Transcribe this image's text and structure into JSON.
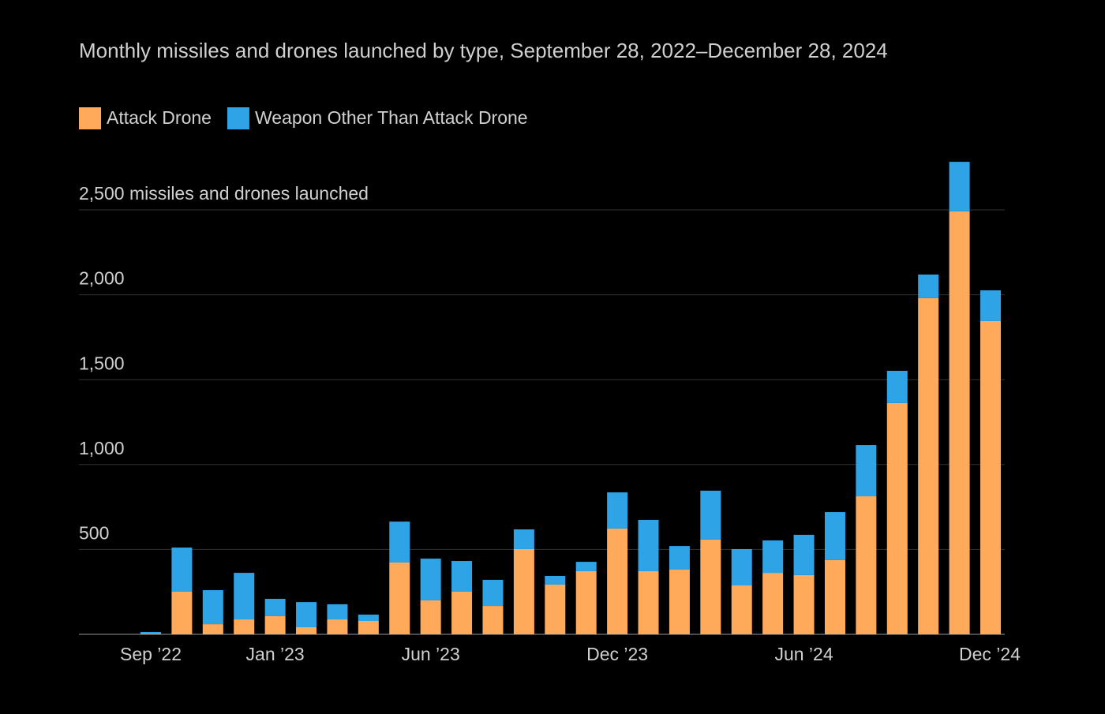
{
  "chart_data": {
    "type": "stacked_bar",
    "title": "Monthly missiles and drones launched by type, September 28, 2022–December 28, 2024",
    "categories": [
      "Sep ’22",
      null,
      null,
      null,
      "Jan ’23",
      null,
      null,
      null,
      null,
      "Jun ’23",
      null,
      null,
      null,
      null,
      null,
      "Dec ’23",
      null,
      null,
      null,
      null,
      null,
      "Jun ’24",
      null,
      null,
      null,
      null,
      null,
      "Dec ’24"
    ],
    "series": [
      {
        "name": "Attack Drone",
        "color": "#ffaa5a",
        "values": [
          4,
          251,
          60,
          88,
          107,
          42,
          88,
          79,
          423,
          200,
          251,
          167,
          502,
          293,
          372,
          623,
          372,
          381,
          558,
          288,
          362,
          349,
          437,
          813,
          1362,
          1980,
          2491,
          1845
        ]
      },
      {
        "name": "Weapon Other Than Attack Drone",
        "color": "#2ea3e6",
        "values": [
          10,
          260,
          200,
          274,
          102,
          148,
          89,
          37,
          241,
          246,
          181,
          154,
          116,
          51,
          55,
          213,
          302,
          139,
          288,
          214,
          191,
          237,
          283,
          302,
          190,
          139,
          292,
          181
        ]
      }
    ],
    "ylim": [
      0,
      2800
    ],
    "yticks": [
      500,
      {
        "value": 1000,
        "label": "1,000"
      },
      {
        "value": 1500,
        "label": "1,500"
      },
      {
        "value": 2000,
        "label": "2,000"
      },
      {
        "value": 2500,
        "label": "2,500 missiles and drones launched"
      }
    ],
    "grid": true,
    "legend": "top-left"
  }
}
